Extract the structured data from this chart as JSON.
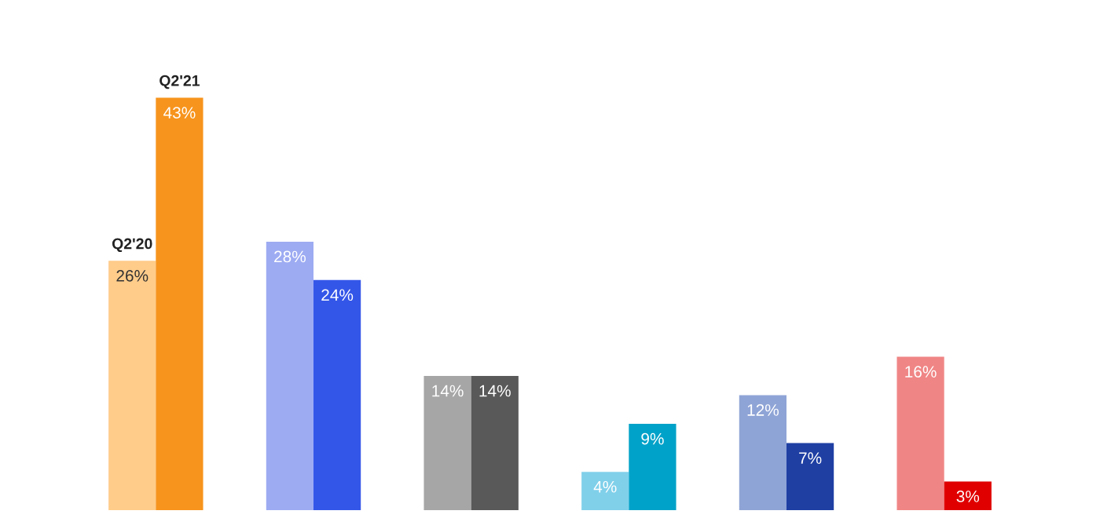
{
  "chart_data": {
    "type": "bar",
    "categories": [
      null,
      null,
      null,
      null,
      null,
      null
    ],
    "series": [
      {
        "name": "Q2'20",
        "colors": [
          "#ffcc8a",
          "#9dabf2",
          "#a6a6a6",
          "#80d0ea",
          "#8fa4d6",
          "#f08585"
        ],
        "values": [
          26,
          28,
          14,
          4,
          12,
          16
        ],
        "value_labels": [
          "26%",
          "28%",
          "14%",
          "4%",
          "12%",
          "16%"
        ]
      },
      {
        "name": "Q2'21",
        "colors": [
          "#f7941d",
          "#3456e8",
          "#595959",
          "#00a2c9",
          "#1f3fa3",
          "#e00000"
        ],
        "values": [
          43,
          24,
          14,
          9,
          7,
          3
        ],
        "value_labels": [
          "43%",
          "24%",
          "14%",
          "9%",
          "7%",
          "3%"
        ]
      }
    ],
    "legend": false,
    "grid": false
  }
}
